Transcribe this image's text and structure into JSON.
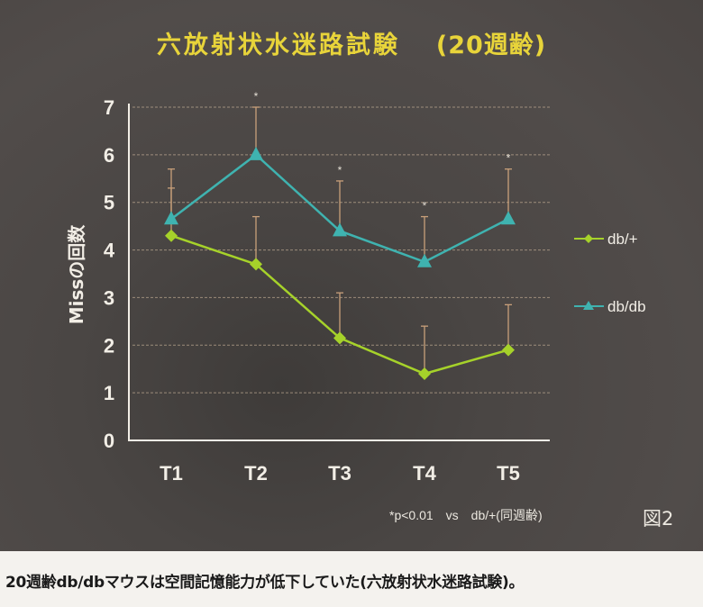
{
  "title": {
    "main": "六放射状水迷路試験",
    "suffix": "(20週齢)"
  },
  "footnote": "*p<0.01　vs　db/+(同週齢)",
  "figure_label": "図2",
  "caption": "20週齢db/dbマウスは空間記憶能力が低下していた(六放射状水迷路試験)。",
  "colors": {
    "background": "#4a4644",
    "title": "#e8d43a",
    "db_plus": "#a6d22a",
    "db_db": "#3fb3b0",
    "error_bar": "#c9a07a",
    "gridline": "#b9a58e",
    "axis": "#f2eee6"
  },
  "chart_data": {
    "type": "line",
    "title": "六放射状水迷路試験 (20週齢)",
    "xlabel": "",
    "ylabel": "Missの回数",
    "categories": [
      "T1",
      "T2",
      "T3",
      "T4",
      "T5"
    ],
    "ylim": [
      0,
      7
    ],
    "yticks": [
      0,
      1,
      2,
      3,
      4,
      5,
      6,
      7
    ],
    "grid": true,
    "legend_position": "right",
    "series": [
      {
        "name": "db/+",
        "marker": "diamond",
        "color": "#a6d22a",
        "values": [
          4.3,
          3.7,
          2.15,
          1.4,
          1.9
        ],
        "error_upper": [
          5.3,
          4.7,
          3.1,
          2.4,
          2.85
        ]
      },
      {
        "name": "db/db",
        "marker": "triangle",
        "color": "#3fb3b0",
        "values": [
          4.65,
          6.0,
          4.4,
          3.75,
          4.65
        ],
        "error_upper": [
          5.7,
          7.0,
          5.45,
          4.7,
          5.7
        ],
        "significant": [
          false,
          true,
          true,
          true,
          true
        ]
      }
    ],
    "annotations": [
      "*p<0.01 vs db/+(同週齢)"
    ]
  }
}
